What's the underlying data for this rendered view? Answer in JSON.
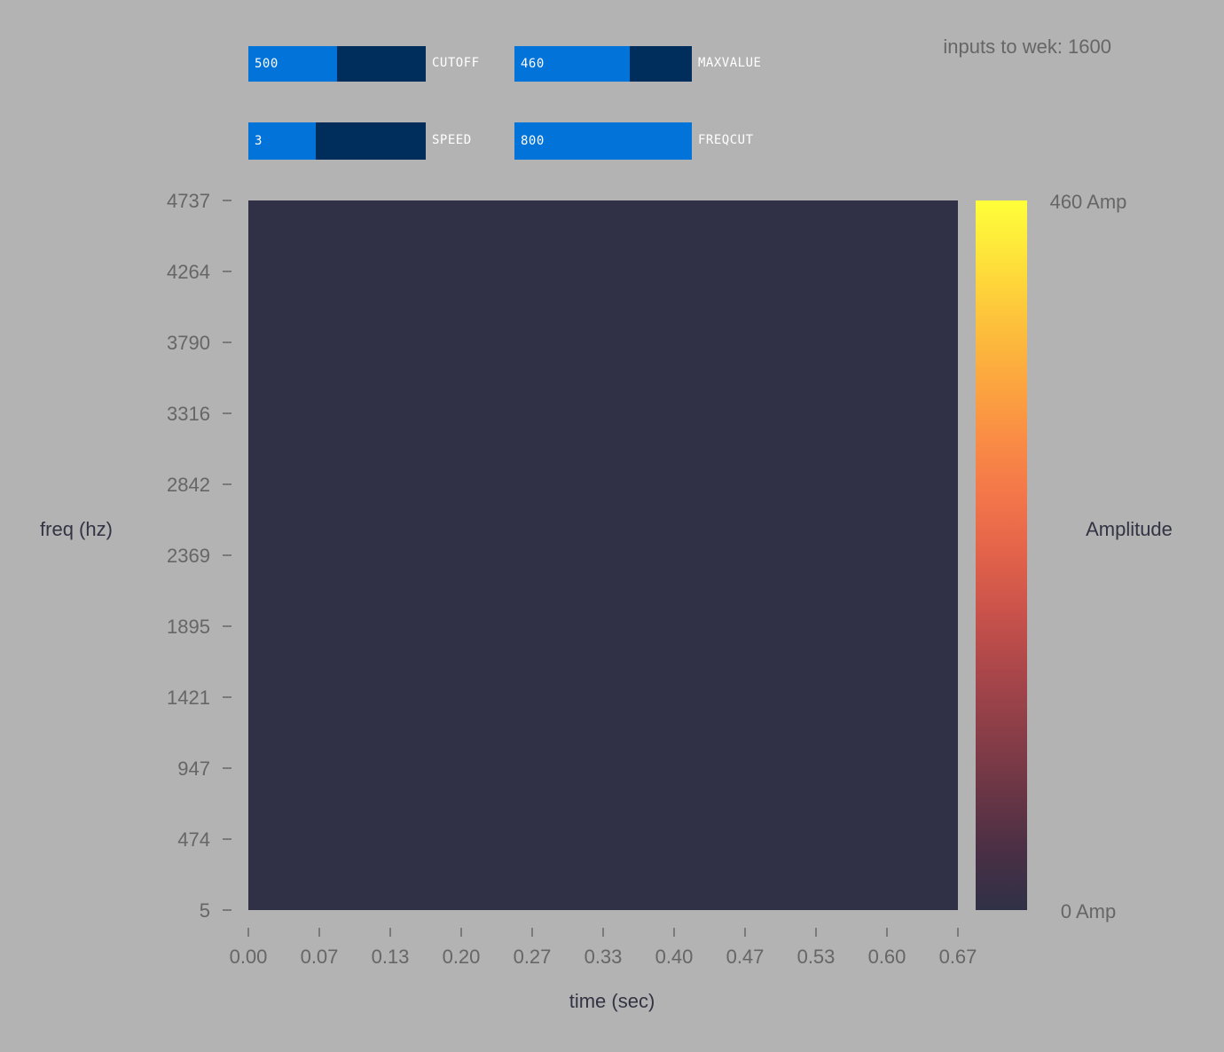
{
  "status": {
    "inputs_to_wek": "inputs to wek: 1600"
  },
  "sliders": [
    {
      "id": "cutoff",
      "label": "CUTOFF",
      "value": "500",
      "fraction": 0.5
    },
    {
      "id": "maxvalue",
      "label": "MAXVALUE",
      "value": "460",
      "fraction": 0.65
    },
    {
      "id": "speed",
      "label": "SPEED",
      "value": "3",
      "fraction": 0.38
    },
    {
      "id": "freqcut",
      "label": "FREQCUT",
      "value": "800",
      "fraction": 1.0
    }
  ],
  "chart_data": {
    "type": "heatmap",
    "xlabel": "time (sec)",
    "ylabel": "freq (hz)",
    "x_ticks": [
      "0.00",
      "0.07",
      "0.13",
      "0.20",
      "0.27",
      "0.33",
      "0.40",
      "0.47",
      "0.53",
      "0.60",
      "0.67"
    ],
    "y_ticks": [
      "4737",
      "4264",
      "3790",
      "3316",
      "2842",
      "2369",
      "1895",
      "1421",
      "947",
      "474",
      "5"
    ],
    "xlim": [
      0,
      0.67
    ],
    "ylim": [
      5,
      4737
    ],
    "values_uniform": 0,
    "plot_color": "#303146",
    "colorbar": {
      "label": "Amplitude",
      "max_label": "460 Amp",
      "min_label": "0 Amp",
      "min_value": 0,
      "max_value": 460,
      "colors": [
        "#303146",
        "#4a2f45",
        "#6a3645",
        "#8a3e48",
        "#a9464a",
        "#c8524b",
        "#e2624a",
        "#f3764a",
        "#fa8d45",
        "#fca83f",
        "#fdc33b",
        "#fee23a",
        "#ffff3a"
      ]
    }
  }
}
